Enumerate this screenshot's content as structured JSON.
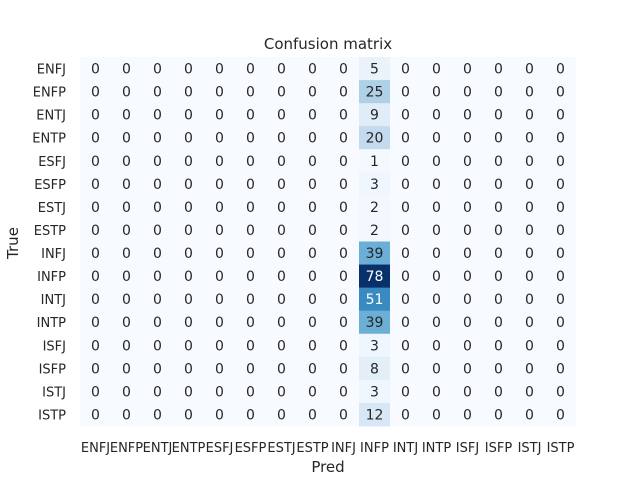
{
  "chart_data": {
    "type": "heatmap",
    "title": "Confusion matrix",
    "xlabel": "Pred",
    "ylabel": "True",
    "colormap": "Blues",
    "color_range": [
      0,
      78
    ],
    "colorbar": false,
    "grid": false,
    "x_categories": [
      "ENFJ",
      "ENFP",
      "ENTJ",
      "ENTP",
      "ESFJ",
      "ESFP",
      "ESTJ",
      "ESTP",
      "INFJ",
      "INFP",
      "INTJ",
      "INTP",
      "ISFJ",
      "ISFP",
      "ISTJ",
      "ISTP"
    ],
    "y_categories": [
      "ENFJ",
      "ENFP",
      "ENTJ",
      "ENTP",
      "ESFJ",
      "ESFP",
      "ESTJ",
      "ESTP",
      "INFJ",
      "INFP",
      "INTJ",
      "INTP",
      "ISFJ",
      "ISFP",
      "ISTJ",
      "ISTP"
    ],
    "matrix": [
      [
        0,
        0,
        0,
        0,
        0,
        0,
        0,
        0,
        0,
        5,
        0,
        0,
        0,
        0,
        0,
        0
      ],
      [
        0,
        0,
        0,
        0,
        0,
        0,
        0,
        0,
        0,
        25,
        0,
        0,
        0,
        0,
        0,
        0
      ],
      [
        0,
        0,
        0,
        0,
        0,
        0,
        0,
        0,
        0,
        9,
        0,
        0,
        0,
        0,
        0,
        0
      ],
      [
        0,
        0,
        0,
        0,
        0,
        0,
        0,
        0,
        0,
        20,
        0,
        0,
        0,
        0,
        0,
        0
      ],
      [
        0,
        0,
        0,
        0,
        0,
        0,
        0,
        0,
        0,
        1,
        0,
        0,
        0,
        0,
        0,
        0
      ],
      [
        0,
        0,
        0,
        0,
        0,
        0,
        0,
        0,
        0,
        3,
        0,
        0,
        0,
        0,
        0,
        0
      ],
      [
        0,
        0,
        0,
        0,
        0,
        0,
        0,
        0,
        0,
        2,
        0,
        0,
        0,
        0,
        0,
        0
      ],
      [
        0,
        0,
        0,
        0,
        0,
        0,
        0,
        0,
        0,
        2,
        0,
        0,
        0,
        0,
        0,
        0
      ],
      [
        0,
        0,
        0,
        0,
        0,
        0,
        0,
        0,
        0,
        39,
        0,
        0,
        0,
        0,
        0,
        0
      ],
      [
        0,
        0,
        0,
        0,
        0,
        0,
        0,
        0,
        0,
        78,
        0,
        0,
        0,
        0,
        0,
        0
      ],
      [
        0,
        0,
        0,
        0,
        0,
        0,
        0,
        0,
        0,
        51,
        0,
        0,
        0,
        0,
        0,
        0
      ],
      [
        0,
        0,
        0,
        0,
        0,
        0,
        0,
        0,
        0,
        39,
        0,
        0,
        0,
        0,
        0,
        0
      ],
      [
        0,
        0,
        0,
        0,
        0,
        0,
        0,
        0,
        0,
        3,
        0,
        0,
        0,
        0,
        0,
        0
      ],
      [
        0,
        0,
        0,
        0,
        0,
        0,
        0,
        0,
        0,
        8,
        0,
        0,
        0,
        0,
        0,
        0
      ],
      [
        0,
        0,
        0,
        0,
        0,
        0,
        0,
        0,
        0,
        3,
        0,
        0,
        0,
        0,
        0,
        0
      ],
      [
        0,
        0,
        0,
        0,
        0,
        0,
        0,
        0,
        0,
        12,
        0,
        0,
        0,
        0,
        0,
        0
      ]
    ]
  }
}
